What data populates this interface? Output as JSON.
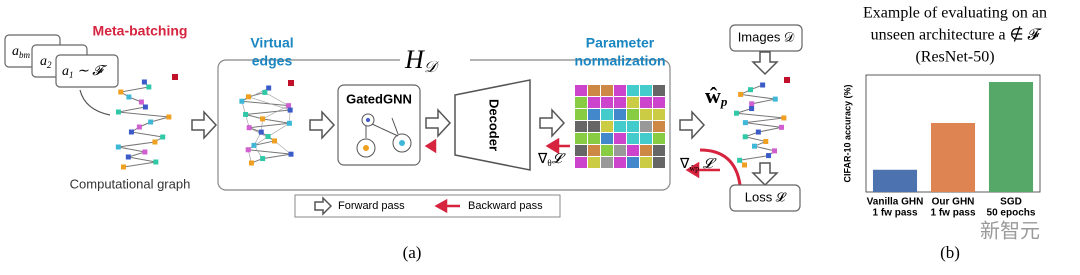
{
  "figure": {
    "meta_batching": "Meta-batching",
    "cards": [
      {
        "symbol": "a",
        "sub": "bm",
        "rest": ""
      },
      {
        "symbol": "a",
        "sub": "2",
        "rest": ""
      },
      {
        "symbol": "a",
        "sub": "1",
        "rest": " ∼ 𝓕"
      }
    ],
    "computational_graph": "Computational graph",
    "virtual_edges": [
      "Virtual",
      "edges"
    ],
    "hypernet": {
      "symbol": "H",
      "sub": "𝒟"
    },
    "gated_gnn": "GatedGNN",
    "decoder": "Decoder",
    "param_norm": [
      "Parameter",
      "normalization"
    ],
    "grad_theta": {
      "symbol": "∇",
      "sub": "θ",
      "rest": "𝓛"
    },
    "weights": {
      "symbol": "ŵ",
      "sub": "p"
    },
    "grad_w": {
      "symbol": "∇",
      "sub": "ŵp",
      "rest": " 𝓛"
    },
    "images": "Images 𝒟",
    "loss": "Loss 𝓛",
    "legend": {
      "forward": "Forward pass",
      "backward": "Backward pass"
    },
    "panel_a": "(a)",
    "panel_b": "(b)"
  },
  "chart_data": {
    "type": "bar",
    "title": [
      "Example of evaluating on an",
      "unseen architecture a ∉ 𝓕",
      "(ResNet-50)"
    ],
    "y_label": "CIFAR-10 accuracy (%)",
    "categories": [
      "Vanilla GHN",
      "Our GHN",
      "SGD"
    ],
    "category_notes": [
      "1 fw pass",
      "1 fw pass",
      "50 epochs"
    ],
    "values": [
      19,
      59,
      94
    ],
    "colors": [
      "#4c72b0",
      "#dd8452",
      "#55a868"
    ],
    "ylim": [
      0,
      100
    ]
  },
  "watermark": "新智元"
}
